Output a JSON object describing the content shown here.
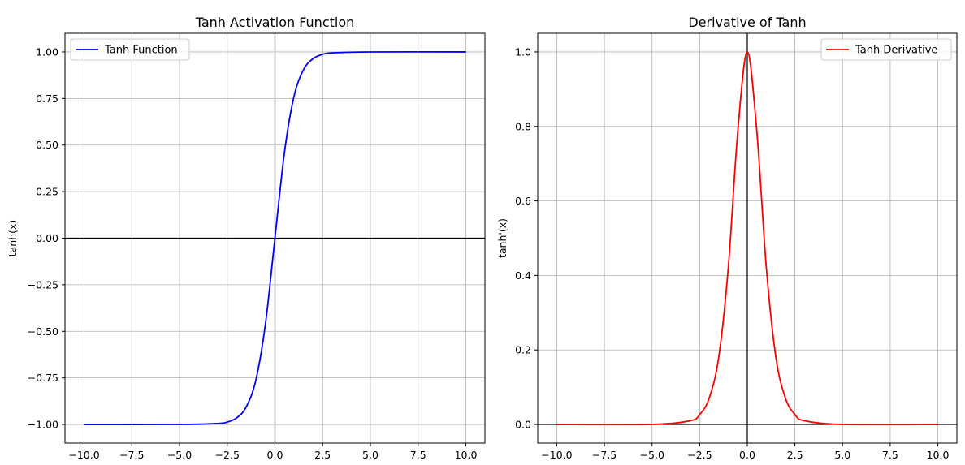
{
  "chart_data": [
    {
      "type": "line",
      "title": "Tanh Activation Function",
      "xlabel": "",
      "ylabel": "tanh(x)",
      "xlim": [
        -11.0,
        11.0
      ],
      "ylim": [
        -1.1,
        1.1
      ],
      "x_ticks": [
        -10.0,
        -7.5,
        -5.0,
        -2.5,
        0.0,
        2.5,
        5.0,
        7.5,
        10.0
      ],
      "x_tick_labels": [
        "−10.0",
        "−7.5",
        "−5.0",
        "−2.5",
        "0.0",
        "2.5",
        "5.0",
        "7.5",
        "10.0"
      ],
      "y_ticks": [
        -1.0,
        -0.75,
        -0.5,
        -0.25,
        0.0,
        0.25,
        0.5,
        0.75,
        1.0
      ],
      "y_tick_labels": [
        "−1.00",
        "−0.75",
        "−0.50",
        "−0.25",
        "0.00",
        "0.25",
        "0.50",
        "0.75",
        "1.00"
      ],
      "grid": true,
      "legend_position": "upper-left",
      "reference_lines": [
        "x=0",
        "y=0"
      ],
      "series": [
        {
          "name": "Tanh Function",
          "color": "#0000ff",
          "x": [
            -10,
            -5,
            -3,
            -2.5,
            -2,
            -1.5,
            -1,
            -0.5,
            0,
            0.5,
            1,
            1.5,
            2,
            2.5,
            3,
            5,
            10
          ],
          "y": [
            -1.0,
            -0.9999,
            -0.995,
            -0.987,
            -0.964,
            -0.905,
            -0.762,
            -0.462,
            0.0,
            0.462,
            0.762,
            0.905,
            0.964,
            0.987,
            0.995,
            0.9999,
            1.0
          ]
        }
      ]
    },
    {
      "type": "line",
      "title": "Derivative of Tanh",
      "xlabel": "",
      "ylabel": "tanh'(x)",
      "xlim": [
        -11.0,
        11.0
      ],
      "ylim": [
        -0.05,
        1.05
      ],
      "x_ticks": [
        -10.0,
        -7.5,
        -5.0,
        -2.5,
        0.0,
        2.5,
        5.0,
        7.5,
        10.0
      ],
      "x_tick_labels": [
        "−10.0",
        "−7.5",
        "−5.0",
        "−2.5",
        "0.0",
        "2.5",
        "5.0",
        "7.5",
        "10.0"
      ],
      "y_ticks": [
        0.0,
        0.2,
        0.4,
        0.6,
        0.8,
        1.0
      ],
      "y_tick_labels": [
        "0.0",
        "0.2",
        "0.4",
        "0.6",
        "0.8",
        "1.0"
      ],
      "grid": true,
      "legend_position": "upper-right",
      "reference_lines": [
        "x=0",
        "y=0"
      ],
      "series": [
        {
          "name": "Tanh Derivative",
          "color": "#ff0000",
          "x": [
            -10,
            -5,
            -3,
            -2.5,
            -2,
            -1.5,
            -1,
            -0.5,
            0,
            0.5,
            1,
            1.5,
            2,
            2.5,
            3,
            5,
            10
          ],
          "y": [
            0.0,
            0.0002,
            0.0099,
            0.0266,
            0.0707,
            0.1807,
            0.42,
            0.7864,
            1.0,
            0.7864,
            0.42,
            0.1807,
            0.0707,
            0.0266,
            0.0099,
            0.0002,
            0.0
          ]
        }
      ]
    }
  ]
}
